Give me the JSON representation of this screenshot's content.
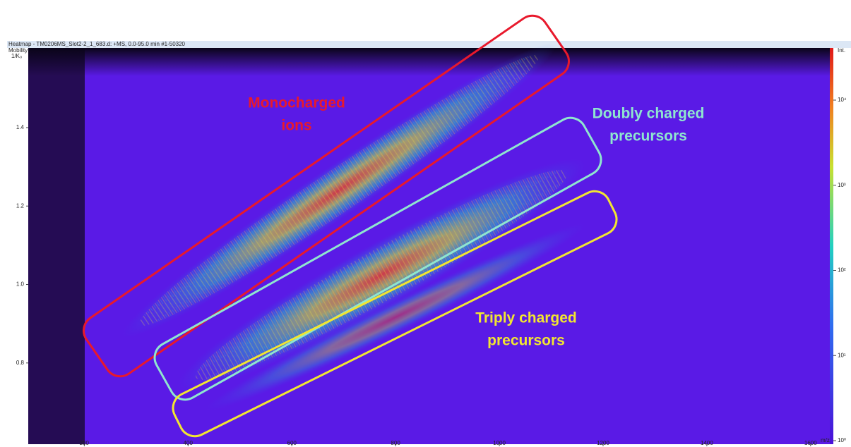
{
  "chart_data": {
    "type": "heatmap",
    "title": "Heatmap - TM0206MS_Slot2-2_1_683.d: +MS, 0.0-95.0 min #1-50320",
    "ylabel": [
      "Mobility",
      "1/K₀"
    ],
    "xlabel": "m/z",
    "xlim": [
      92,
      1637
    ],
    "xticks": [
      200,
      400,
      600,
      800,
      1000,
      1200,
      1400,
      1600
    ],
    "ylim": [
      0.593,
      1.603
    ],
    "yticks": [
      0.8,
      {
        "value": 1,
        "label": "1.0"
      },
      1.2,
      1.4
    ],
    "colorbar": {
      "label": "Int.",
      "log": true,
      "lim": [
        1,
        41000
      ],
      "ticks": [
        {
          "value": 1,
          "label": "10⁰"
        },
        {
          "value": 10,
          "label": "10¹"
        },
        {
          "value": 100,
          "label": "10²"
        },
        {
          "value": 1000,
          "label": "10³"
        },
        {
          "value": 10000,
          "label": "10⁴"
        }
      ]
    },
    "annotations": [
      {
        "lines": [
          "Monocharged",
          "ions"
        ],
        "color": "#e8192c"
      },
      {
        "lines": [
          "Doubly charged",
          "precursors"
        ],
        "color": "#8fe6cf"
      },
      {
        "lines": [
          "Triply charged",
          "precursors"
        ],
        "color": "#f2e630"
      }
    ]
  }
}
